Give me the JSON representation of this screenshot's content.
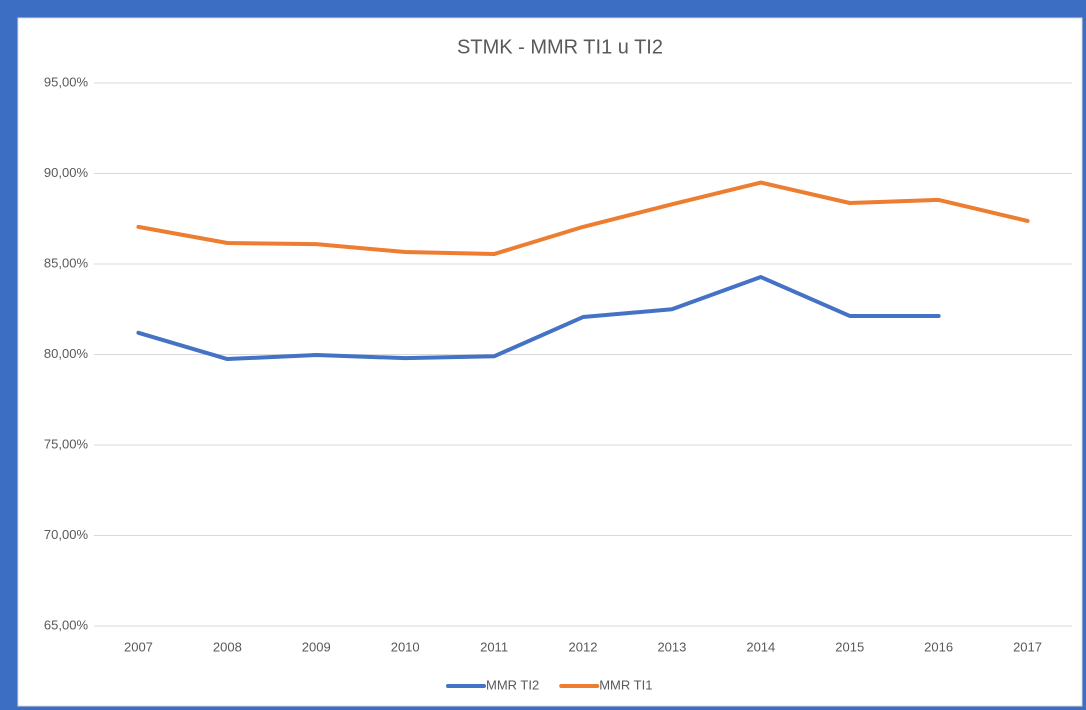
{
  "chart_data": {
    "type": "line",
    "title": "STMK - MMR TI1 u TI2",
    "x": [
      "2007",
      "2008",
      "2009",
      "2010",
      "2011",
      "2012",
      "2013",
      "2014",
      "2015",
      "2016",
      "2017"
    ],
    "series": [
      {
        "name": "MMR TI2",
        "color": "#4472c4",
        "values": [
          81.2,
          79.75,
          79.97,
          79.8,
          79.9,
          82.07,
          82.5,
          84.28,
          82.13,
          82.13,
          null
        ]
      },
      {
        "name": "MMR TI1",
        "color": "#ed7d31",
        "values": [
          87.05,
          86.16,
          86.1,
          85.66,
          85.55,
          87.05,
          88.3,
          89.5,
          88.37,
          88.54,
          87.38
        ]
      }
    ],
    "ylim": [
      65,
      95
    ],
    "yticks": [
      {
        "value": 65,
        "label": "65,00%"
      },
      {
        "value": 70,
        "label": "70,00%"
      },
      {
        "value": 75,
        "label": "75,00%"
      },
      {
        "value": 80,
        "label": "80,00%"
      },
      {
        "value": 85,
        "label": "85,00%"
      },
      {
        "value": 90,
        "label": "90,00%"
      },
      {
        "value": 95,
        "label": "95,00%"
      }
    ],
    "grid": true,
    "legend": "bottom"
  }
}
